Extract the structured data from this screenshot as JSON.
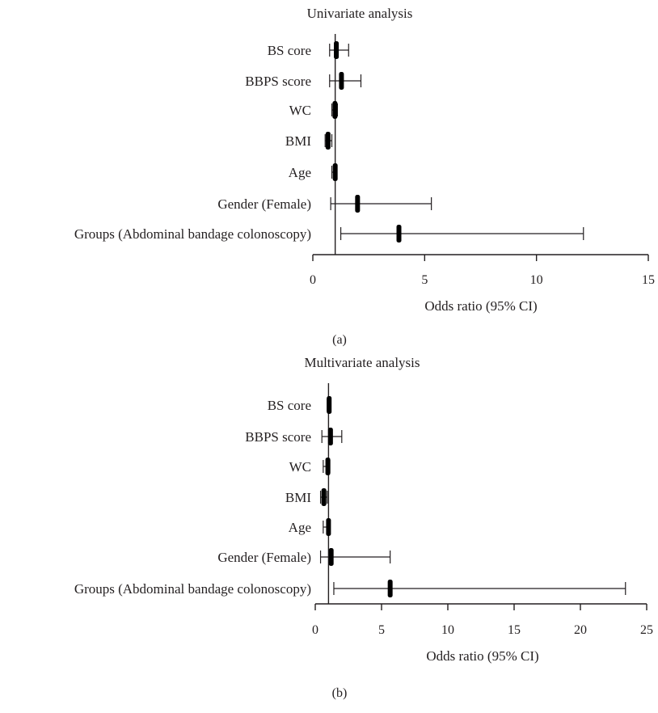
{
  "chart_data": [
    {
      "type": "forest",
      "panel_label": "(a)",
      "title": "Univariate analysis",
      "xlabel": "Odds ratio (95% CI)",
      "xlim": [
        0,
        15
      ],
      "xticks": [
        "0",
        "5",
        "10",
        "15"
      ],
      "reference_line": 1,
      "categories": [
        "BS core",
        "BBPS score",
        "WC",
        "BMI",
        "Age",
        "Gender (Female)",
        "Groups (Abdominal bandage colonoscopy)"
      ],
      "estimates": [
        1.05,
        1.28,
        0.99,
        0.68,
        1.0,
        2.0,
        3.85
      ],
      "ci_lower": [
        0.75,
        0.75,
        0.85,
        0.55,
        0.85,
        0.8,
        1.25
      ],
      "ci_upper": [
        1.6,
        2.15,
        1.1,
        0.85,
        1.05,
        5.3,
        12.1
      ]
    },
    {
      "type": "forest",
      "panel_label": "(b)",
      "title": "Multivariate analysis",
      "xlabel": "Odds ratio (95% CI)",
      "xlim": [
        0,
        25
      ],
      "xticks": [
        "0",
        "5",
        "10",
        "15",
        "20",
        "25"
      ],
      "reference_line": 1,
      "categories": [
        "BS core",
        "BBPS score",
        "WC",
        "BMI",
        "Age",
        "Gender (Female)",
        "Groups (Abdominal bandage colonoscopy)"
      ],
      "estimates": [
        1.05,
        1.15,
        0.95,
        0.65,
        1.0,
        1.2,
        5.65
      ],
      "ci_lower": [
        0.9,
        0.5,
        0.6,
        0.4,
        0.6,
        0.4,
        1.4
      ],
      "ci_upper": [
        1.15,
        2.0,
        1.1,
        0.9,
        1.1,
        5.65,
        23.4
      ]
    }
  ]
}
